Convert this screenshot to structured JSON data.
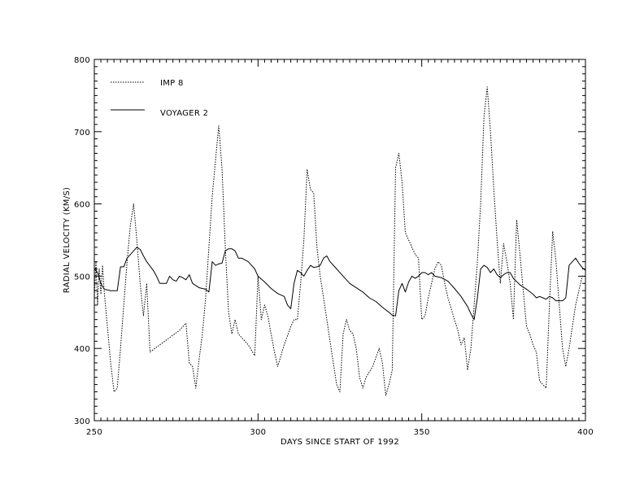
{
  "chart_data": {
    "type": "line",
    "xlabel": "DAYS SINCE START OF 1992",
    "ylabel": "RADIAL VELOCITY (KM/S)",
    "xlim": [
      250,
      400
    ],
    "ylim": [
      300,
      800
    ],
    "x_ticks": [
      "250",
      "300",
      "350",
      "400"
    ],
    "y_ticks": [
      "300",
      "400",
      "500",
      "600",
      "700",
      "800"
    ],
    "legend_position": "top-left",
    "grid": false,
    "series": [
      {
        "name": "IMP 8",
        "style": "dotted",
        "color": "#000000",
        "points": [
          [
            250,
            470
          ],
          [
            250.5,
            520
          ],
          [
            251,
            460
          ],
          [
            251.5,
            510
          ],
          [
            252,
            475
          ],
          [
            252.5,
            515
          ],
          [
            253,
            480
          ],
          [
            254,
            430
          ],
          [
            255,
            380
          ],
          [
            256,
            340
          ],
          [
            257,
            345
          ],
          [
            258,
            400
          ],
          [
            259,
            460
          ],
          [
            260,
            520
          ],
          [
            261,
            570
          ],
          [
            262,
            600
          ],
          [
            263,
            550
          ],
          [
            264,
            490
          ],
          [
            265,
            445
          ],
          [
            266,
            490
          ],
          [
            267,
            395
          ],
          [
            270,
            405
          ],
          [
            273,
            415
          ],
          [
            276,
            425
          ],
          [
            278,
            435
          ],
          [
            279,
            380
          ],
          [
            280,
            375
          ],
          [
            281,
            345
          ],
          [
            282,
            385
          ],
          [
            283,
            420
          ],
          [
            284,
            470
          ],
          [
            285,
            540
          ],
          [
            286,
            610
          ],
          [
            287,
            660
          ],
          [
            288,
            708
          ],
          [
            289,
            650
          ],
          [
            290,
            540
          ],
          [
            291,
            450
          ],
          [
            292,
            420
          ],
          [
            293,
            440
          ],
          [
            294,
            420
          ],
          [
            297,
            405
          ],
          [
            299,
            390
          ],
          [
            300,
            500
          ],
          [
            301,
            440
          ],
          [
            302,
            460
          ],
          [
            303,
            445
          ],
          [
            304,
            420
          ],
          [
            305,
            395
          ],
          [
            306,
            375
          ],
          [
            308,
            405
          ],
          [
            310,
            430
          ],
          [
            311,
            440
          ],
          [
            312,
            440
          ],
          [
            313,
            490
          ],
          [
            314,
            550
          ],
          [
            315,
            648
          ],
          [
            316,
            620
          ],
          [
            317,
            615
          ],
          [
            318,
            540
          ],
          [
            319,
            500
          ],
          [
            320,
            470
          ],
          [
            321,
            440
          ],
          [
            322,
            410
          ],
          [
            323,
            380
          ],
          [
            324,
            350
          ],
          [
            325,
            340
          ],
          [
            326,
            420
          ],
          [
            327,
            440
          ],
          [
            328,
            425
          ],
          [
            329,
            420
          ],
          [
            330,
            400
          ],
          [
            331,
            360
          ],
          [
            332,
            345
          ],
          [
            333,
            360
          ],
          [
            335,
            375
          ],
          [
            337,
            400
          ],
          [
            338,
            380
          ],
          [
            339,
            335
          ],
          [
            340,
            350
          ],
          [
            341,
            370
          ],
          [
            342,
            650
          ],
          [
            343,
            670
          ],
          [
            344,
            630
          ],
          [
            345,
            560
          ],
          [
            346,
            550
          ],
          [
            347,
            540
          ],
          [
            348,
            530
          ],
          [
            349,
            525
          ],
          [
            350,
            440
          ],
          [
            351,
            445
          ],
          [
            352,
            470
          ],
          [
            353,
            490
          ],
          [
            354,
            510
          ],
          [
            355,
            520
          ],
          [
            356,
            515
          ],
          [
            357,
            490
          ],
          [
            358,
            470
          ],
          [
            359,
            455
          ],
          [
            360,
            440
          ],
          [
            361,
            425
          ],
          [
            362,
            405
          ],
          [
            363,
            415
          ],
          [
            364,
            370
          ],
          [
            365,
            400
          ],
          [
            366,
            460
          ],
          [
            367,
            520
          ],
          [
            368,
            600
          ],
          [
            369,
            720
          ],
          [
            370,
            762
          ],
          [
            371,
            700
          ],
          [
            372,
            620
          ],
          [
            373,
            550
          ],
          [
            374,
            490
          ],
          [
            375,
            545
          ],
          [
            376,
            520
          ],
          [
            377,
            490
          ],
          [
            378,
            440
          ],
          [
            379,
            578
          ],
          [
            380,
            530
          ],
          [
            381,
            480
          ],
          [
            382,
            430
          ],
          [
            383,
            420
          ],
          [
            384,
            405
          ],
          [
            385,
            395
          ],
          [
            386,
            355
          ],
          [
            387,
            350
          ],
          [
            388,
            345
          ],
          [
            389,
            460
          ],
          [
            390,
            562
          ],
          [
            391,
            520
          ],
          [
            392,
            460
          ],
          [
            393,
            400
          ],
          [
            394,
            375
          ],
          [
            395,
            400
          ],
          [
            396,
            430
          ],
          [
            397,
            460
          ],
          [
            398,
            480
          ],
          [
            399,
            500
          ],
          [
            400,
            500
          ]
        ]
      },
      {
        "name": "VOYAGER 2",
        "style": "solid",
        "color": "#000000",
        "points": [
          [
            250,
            510
          ],
          [
            251,
            505
          ],
          [
            252,
            490
          ],
          [
            253,
            482
          ],
          [
            255,
            480
          ],
          [
            257,
            480
          ],
          [
            258,
            513
          ],
          [
            259,
            513
          ],
          [
            260,
            525
          ],
          [
            261,
            530
          ],
          [
            262,
            535
          ],
          [
            263,
            540
          ],
          [
            264,
            537
          ],
          [
            265,
            528
          ],
          [
            266,
            520
          ],
          [
            268,
            508
          ],
          [
            269,
            500
          ],
          [
            270,
            490
          ],
          [
            272,
            490
          ],
          [
            273,
            500
          ],
          [
            274,
            495
          ],
          [
            275,
            493
          ],
          [
            276,
            500
          ],
          [
            277,
            498
          ],
          [
            278,
            495
          ],
          [
            279,
            502
          ],
          [
            280,
            490
          ],
          [
            282,
            484
          ],
          [
            284,
            482
          ],
          [
            285,
            478
          ],
          [
            286,
            520
          ],
          [
            287,
            515
          ],
          [
            288,
            517
          ],
          [
            289,
            518
          ],
          [
            290,
            535
          ],
          [
            291,
            538
          ],
          [
            292,
            538
          ],
          [
            293,
            535
          ],
          [
            294,
            525
          ],
          [
            295,
            525
          ],
          [
            297,
            520
          ],
          [
            299,
            510
          ],
          [
            300,
            500
          ],
          [
            302,
            492
          ],
          [
            304,
            483
          ],
          [
            306,
            476
          ],
          [
            308,
            472
          ],
          [
            309,
            460
          ],
          [
            310,
            455
          ],
          [
            311,
            490
          ],
          [
            312,
            508
          ],
          [
            313,
            505
          ],
          [
            314,
            500
          ],
          [
            315,
            508
          ],
          [
            316,
            515
          ],
          [
            317,
            512
          ],
          [
            318,
            513
          ],
          [
            319,
            515
          ],
          [
            320,
            525
          ],
          [
            321,
            528
          ],
          [
            322,
            520
          ],
          [
            324,
            510
          ],
          [
            326,
            500
          ],
          [
            328,
            490
          ],
          [
            330,
            484
          ],
          [
            332,
            478
          ],
          [
            334,
            470
          ],
          [
            336,
            465
          ],
          [
            338,
            457
          ],
          [
            340,
            450
          ],
          [
            341,
            446
          ],
          [
            342,
            445
          ],
          [
            343,
            480
          ],
          [
            344,
            490
          ],
          [
            345,
            478
          ],
          [
            346,
            492
          ],
          [
            347,
            500
          ],
          [
            348,
            497
          ],
          [
            349,
            500
          ],
          [
            350,
            505
          ],
          [
            351,
            505
          ],
          [
            352,
            502
          ],
          [
            353,
            505
          ],
          [
            354,
            500
          ],
          [
            356,
            498
          ],
          [
            358,
            493
          ],
          [
            360,
            483
          ],
          [
            362,
            472
          ],
          [
            364,
            458
          ],
          [
            365,
            448
          ],
          [
            366,
            440
          ],
          [
            367,
            470
          ],
          [
            368,
            510
          ],
          [
            369,
            515
          ],
          [
            370,
            512
          ],
          [
            371,
            505
          ],
          [
            372,
            510
          ],
          [
            373,
            502
          ],
          [
            374,
            498
          ],
          [
            375,
            502
          ],
          [
            376,
            505
          ],
          [
            377,
            505
          ],
          [
            378,
            497
          ],
          [
            380,
            488
          ],
          [
            382,
            482
          ],
          [
            384,
            475
          ],
          [
            385,
            470
          ],
          [
            386,
            472
          ],
          [
            387,
            470
          ],
          [
            388,
            468
          ],
          [
            389,
            472
          ],
          [
            390,
            470
          ],
          [
            391,
            466
          ],
          [
            393,
            466
          ],
          [
            394,
            470
          ],
          [
            395,
            515
          ],
          [
            396,
            520
          ],
          [
            397,
            525
          ],
          [
            398,
            518
          ],
          [
            399,
            512
          ],
          [
            400,
            508
          ]
        ]
      }
    ]
  }
}
